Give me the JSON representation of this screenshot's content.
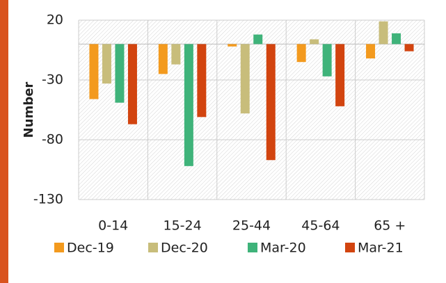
{
  "chart_data": {
    "type": "bar",
    "y_label": "Number",
    "categories": [
      "0-14",
      "15-24",
      "25-44",
      "45-64",
      "65 +"
    ],
    "series": [
      {
        "name": "Dec-19",
        "color": "#f39a1e",
        "values": [
          -46,
          -25,
          -2,
          -15,
          -12
        ]
      },
      {
        "name": "Dec-20",
        "color": "#c8bd7b",
        "values": [
          -33,
          -17,
          -58,
          4,
          19
        ]
      },
      {
        "name": "Mar-20",
        "color": "#3fb37a",
        "values": [
          -49,
          -102,
          8,
          -27,
          9
        ]
      },
      {
        "name": "Mar-21",
        "color": "#d2440f",
        "values": [
          -67,
          -61,
          -97,
          -52,
          -6
        ]
      }
    ],
    "ylim": [
      -130,
      20
    ],
    "yticks": [
      20,
      -30,
      -80,
      -130
    ],
    "grid": true,
    "legend": "bottom"
  }
}
